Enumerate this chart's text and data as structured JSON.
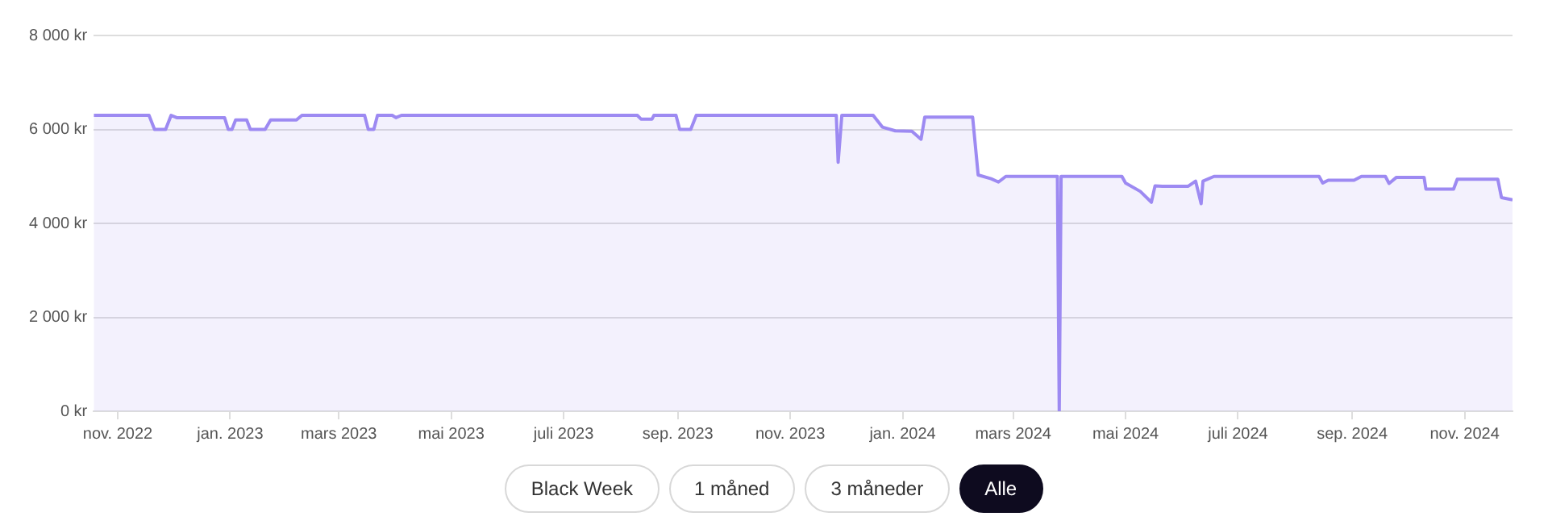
{
  "chart_data": {
    "type": "area",
    "x": [
      "2022-10-19",
      "2022-11-18",
      "2022-11-21",
      "2022-11-27",
      "2022-11-30",
      "2022-12-03",
      "2022-12-29",
      "2022-12-31",
      "2023-01-02",
      "2023-01-04",
      "2023-01-10",
      "2023-01-12",
      "2023-01-20",
      "2023-01-23",
      "2023-02-06",
      "2023-02-09",
      "2023-03-15",
      "2023-03-17",
      "2023-03-20",
      "2023-03-22",
      "2023-03-30",
      "2023-04-01",
      "2023-04-04",
      "2023-08-10",
      "2023-08-12",
      "2023-08-18",
      "2023-08-19",
      "2023-08-31",
      "2023-09-02",
      "2023-09-08",
      "2023-09-11",
      "2023-11-26",
      "2023-11-27",
      "2023-11-29",
      "2023-12-16",
      "2023-12-21",
      "2023-12-28",
      "2024-01-06",
      "2024-01-11",
      "2024-01-13",
      "2024-02-08",
      "2024-02-11",
      "2024-02-18",
      "2024-02-22",
      "2024-02-26",
      "2024-03-25",
      "2024-03-26",
      "2024-03-27",
      "2024-04-29",
      "2024-05-01",
      "2024-05-09",
      "2024-05-15",
      "2024-05-17",
      "2024-05-21",
      "2024-06-04",
      "2024-06-08",
      "2024-06-11",
      "2024-06-12",
      "2024-06-18",
      "2024-08-14",
      "2024-08-16",
      "2024-08-19",
      "2024-09-02",
      "2024-09-06",
      "2024-09-19",
      "2024-09-21",
      "2024-09-25",
      "2024-10-10",
      "2024-10-11",
      "2024-10-26",
      "2024-10-28",
      "2024-11-19",
      "2024-11-21",
      "2024-11-27"
    ],
    "series": [
      {
        "color": "#9d8af2",
        "values": [
          6300,
          6300,
          6000,
          6000,
          6300,
          6250,
          6250,
          6000,
          6000,
          6200,
          6200,
          6000,
          6000,
          6200,
          6200,
          6300,
          6300,
          6000,
          6000,
          6300,
          6300,
          6250,
          6300,
          6300,
          6220,
          6220,
          6300,
          6300,
          6000,
          6000,
          6300,
          6300,
          5300,
          6300,
          6300,
          6050,
          5970,
          5960,
          5790,
          6260,
          6260,
          5030,
          4950,
          4880,
          5000,
          5000,
          0,
          5000,
          5000,
          4860,
          4680,
          4450,
          4800,
          4790,
          4790,
          4900,
          4420,
          4900,
          5000,
          5000,
          4860,
          4920,
          4920,
          5000,
          5000,
          4850,
          4980,
          4980,
          4730,
          4730,
          4940,
          4940,
          4550,
          4500
        ]
      }
    ],
    "xlim": [
      "2022-10-19",
      "2024-11-27"
    ],
    "xticks": [
      {
        "value": "2022-11-01",
        "label": "nov. 2022"
      },
      {
        "value": "2023-01-01",
        "label": "jan. 2023"
      },
      {
        "value": "2023-03-01",
        "label": "mars 2023"
      },
      {
        "value": "2023-05-01",
        "label": "mai 2023"
      },
      {
        "value": "2023-07-01",
        "label": "juli 2023"
      },
      {
        "value": "2023-09-01",
        "label": "sep. 2023"
      },
      {
        "value": "2023-11-01",
        "label": "nov. 2023"
      },
      {
        "value": "2024-01-01",
        "label": "jan. 2024"
      },
      {
        "value": "2024-03-01",
        "label": "mars 2024"
      },
      {
        "value": "2024-05-01",
        "label": "mai 2024"
      },
      {
        "value": "2024-07-01",
        "label": "juli 2024"
      },
      {
        "value": "2024-09-01",
        "label": "sep. 2024"
      },
      {
        "value": "2024-11-01",
        "label": "nov. 2024"
      }
    ],
    "ylim": [
      0,
      8000
    ],
    "yticks": [
      {
        "value": 0,
        "label": "0 kr"
      },
      {
        "value": 2000,
        "label": "2 000 kr"
      },
      {
        "value": 4000,
        "label": "4 000 kr"
      },
      {
        "value": 6000,
        "label": "6 000 kr"
      },
      {
        "value": 8000,
        "label": "8 000 kr"
      }
    ],
    "grid": "y",
    "legend": false,
    "annotations": [
      "Black Week",
      "1 måned",
      "3 måneder",
      "Alle"
    ]
  }
}
